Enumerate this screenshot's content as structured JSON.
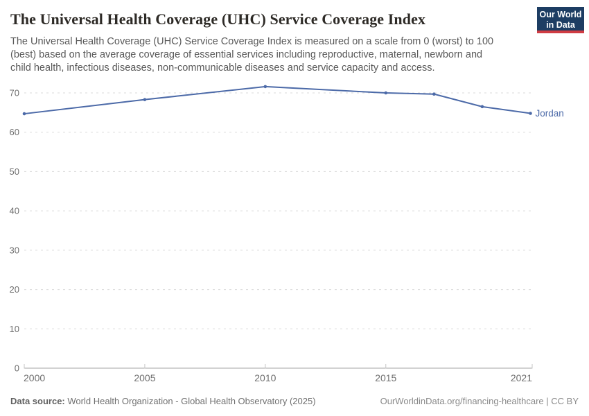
{
  "header": {
    "title": "The Universal Health Coverage (UHC) Service Coverage Index",
    "subtitle": "The Universal Health Coverage (UHC) Service Coverage Index is measured on a scale from 0 (worst) to 100 (best) based on the average coverage of essential services including reproductive, maternal, newborn and child health, infectious diseases, non-communicable diseases and service capacity and access.",
    "logo_line1": "Our World",
    "logo_line2": "in Data"
  },
  "chart_data": {
    "type": "line",
    "title": "The Universal Health Coverage (UHC) Service Coverage Index",
    "x": [
      2000,
      2005,
      2010,
      2015,
      2017,
      2019,
      2021
    ],
    "series": [
      {
        "name": "Jordan",
        "color": "#4c6aa8",
        "values": [
          64.7,
          68.3,
          71.6,
          70.0,
          69.7,
          66.5,
          64.8
        ]
      }
    ],
    "x_ticks": [
      2000,
      2005,
      2010,
      2015,
      2021
    ],
    "y_ticks": [
      0,
      10,
      20,
      30,
      40,
      50,
      60,
      70
    ],
    "xlim": [
      2000,
      2021
    ],
    "ylim": [
      0,
      70
    ],
    "grid": true,
    "grid_style": "dashed",
    "legend_position": "line-end-label",
    "xlabel": "",
    "ylabel": ""
  },
  "colors": {
    "line": "#4c6aa8",
    "grid": "#dadada",
    "axis": "#a6a6a6",
    "tick": "#c4c4c4",
    "tick_label": "#6e6e6e",
    "title": "#2d2a26",
    "subtitle": "#595959",
    "logo_bg": "#1d3d63",
    "logo_accent": "#d03c43"
  },
  "footer": {
    "source_label": "Data source:",
    "source_text": "World Health Organization - Global Health Observatory (2025)",
    "license_text": "OurWorldinData.org/financing-healthcare | CC BY"
  }
}
